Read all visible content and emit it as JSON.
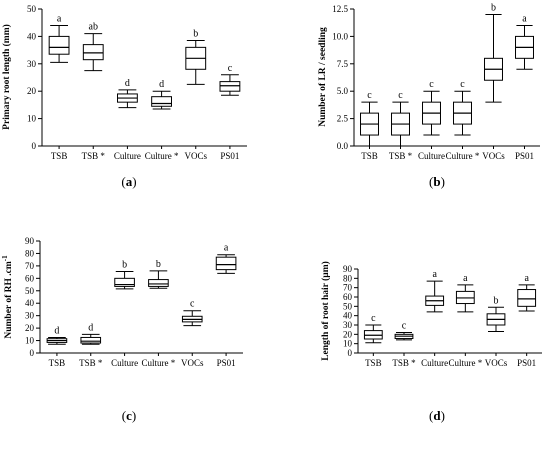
{
  "chart_data": [
    {
      "type": "box",
      "panel_label": "a",
      "ylabel": "Primary root length (mm)",
      "ylim": [
        0,
        50
      ],
      "yticks": [
        "0",
        "10",
        "20",
        "30",
        "40",
        "50"
      ],
      "categories": [
        "TSB",
        "TSB *",
        "Culture",
        "Culture *",
        "VOCs",
        "PS01"
      ],
      "boxes": [
        {
          "min": 30.5,
          "q1": 33.5,
          "median": 36,
          "q3": 40,
          "max": 44
        },
        {
          "min": 27.5,
          "q1": 31.5,
          "median": 34,
          "q3": 37,
          "max": 41
        },
        {
          "min": 14,
          "q1": 16,
          "median": 17.5,
          "q3": 19,
          "max": 20.5
        },
        {
          "min": 13.5,
          "q1": 14.5,
          "median": 15.5,
          "q3": 18,
          "max": 20
        },
        {
          "min": 22.5,
          "q1": 28,
          "median": 32,
          "q3": 36,
          "max": 38.5
        },
        {
          "min": 18.5,
          "q1": 20,
          "median": 22,
          "q3": 23.5,
          "max": 26
        }
      ],
      "letters": [
        "a",
        "ab",
        "d",
        "d",
        "b",
        "c"
      ]
    },
    {
      "type": "box",
      "panel_label": "b",
      "ylabel": "Number of LR / seedling",
      "ylim": [
        0,
        12.5
      ],
      "yticks": [
        "0.0",
        "2.5",
        "5.0",
        "7.5",
        "10.0",
        "12.5"
      ],
      "categories": [
        "TSB",
        "TSB *",
        "Culture",
        "Culture *",
        "VOCs",
        "PS01"
      ],
      "boxes": [
        {
          "min": 0,
          "q1": 1,
          "median": 2,
          "q3": 3,
          "max": 4
        },
        {
          "min": 0,
          "q1": 1,
          "median": 2,
          "q3": 3,
          "max": 4
        },
        {
          "min": 1,
          "q1": 2,
          "median": 3,
          "q3": 4,
          "max": 5
        },
        {
          "min": 1,
          "q1": 2,
          "median": 3,
          "q3": 4,
          "max": 5
        },
        {
          "min": 4,
          "q1": 6,
          "median": 7,
          "q3": 8,
          "max": 12
        },
        {
          "min": 7,
          "q1": 8,
          "median": 9,
          "q3": 10,
          "max": 11
        }
      ],
      "letters": [
        "c",
        "c",
        "c",
        "c",
        "b",
        "a"
      ]
    },
    {
      "type": "box",
      "panel_label": "c",
      "ylabel": "Number of RH .cm",
      "ylabel_superscript": "-1",
      "ylim": [
        0,
        90
      ],
      "yticks": [
        "0",
        "10",
        "20",
        "30",
        "40",
        "50",
        "60",
        "70",
        "80",
        "90"
      ],
      "categories": [
        "TSB",
        "TSB *",
        "Culture",
        "Culture *",
        "VOCs",
        "PS01"
      ],
      "boxes": [
        {
          "min": 7,
          "q1": 8.5,
          "median": 10,
          "q3": 11.5,
          "max": 12.5
        },
        {
          "min": 7,
          "q1": 8,
          "median": 9.5,
          "q3": 12.5,
          "max": 15
        },
        {
          "min": 51.5,
          "q1": 53.5,
          "median": 55,
          "q3": 60,
          "max": 65.5
        },
        {
          "min": 52,
          "q1": 53.5,
          "median": 55.5,
          "q3": 59,
          "max": 66
        },
        {
          "min": 22,
          "q1": 25,
          "median": 27,
          "q3": 29.5,
          "max": 34
        },
        {
          "min": 64,
          "q1": 67,
          "median": 71,
          "q3": 77,
          "max": 79
        }
      ],
      "letters": [
        "d",
        "d",
        "b",
        "b",
        "c",
        "a"
      ]
    },
    {
      "type": "box",
      "panel_label": "d",
      "ylabel": "Length of root hair (µm)",
      "ylim": [
        0,
        90
      ],
      "yticks": [
        "0",
        "10",
        "20",
        "30",
        "40",
        "50",
        "60",
        "70",
        "80",
        "90"
      ],
      "categories": [
        "TSB",
        "TSB *",
        "Culture",
        "Culture *",
        "VOCs",
        "PS01"
      ],
      "boxes": [
        {
          "min": 11,
          "q1": 15,
          "median": 19,
          "q3": 24,
          "max": 30
        },
        {
          "min": 14,
          "q1": 15.5,
          "median": 18,
          "q3": 20,
          "max": 22
        },
        {
          "min": 44,
          "q1": 51,
          "median": 56,
          "q3": 61,
          "max": 77
        },
        {
          "min": 44,
          "q1": 53,
          "median": 59,
          "q3": 66,
          "max": 73
        },
        {
          "min": 23,
          "q1": 30,
          "median": 36,
          "q3": 42,
          "max": 49
        },
        {
          "min": 45,
          "q1": 50,
          "median": 58,
          "q3": 68,
          "max": 73
        }
      ],
      "letters": [
        "c",
        "c",
        "a",
        "a",
        "b",
        "a"
      ]
    }
  ]
}
